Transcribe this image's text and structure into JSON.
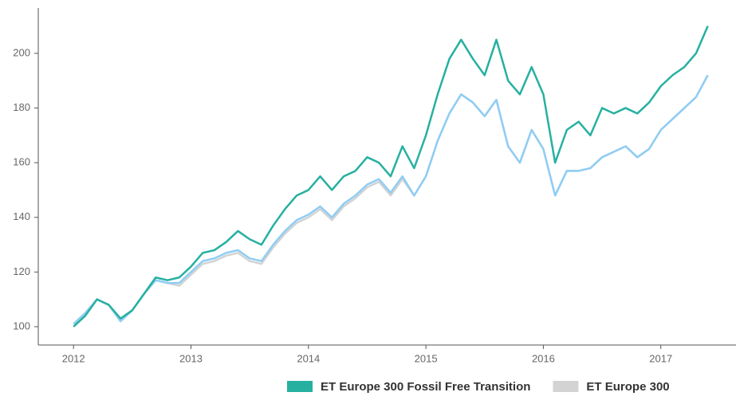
{
  "chart_data": {
    "type": "line",
    "x": [
      2012.0,
      2012.1,
      2012.2,
      2012.3,
      2012.4,
      2012.5,
      2012.6,
      2012.7,
      2012.8,
      2012.9,
      2013.0,
      2013.1,
      2013.2,
      2013.3,
      2013.4,
      2013.5,
      2013.6,
      2013.7,
      2013.8,
      2013.9,
      2014.0,
      2014.1,
      2014.2,
      2014.3,
      2014.4,
      2014.5,
      2014.6,
      2014.7,
      2014.8,
      2014.9,
      2015.0,
      2015.1,
      2015.2,
      2015.3,
      2015.4,
      2015.5,
      2015.6,
      2015.7,
      2015.8,
      2015.9,
      2016.0,
      2016.1,
      2016.2,
      2016.3,
      2016.4,
      2016.5,
      2016.6,
      2016.7,
      2016.8,
      2016.9,
      2017.0,
      2017.1,
      2017.2,
      2017.3,
      2017.4
    ],
    "series": [
      {
        "name": "ET Europe 300",
        "color": "#d3d3d3",
        "values": [
          101,
          105,
          110,
          108,
          102,
          106,
          112,
          117,
          116,
          115,
          119,
          123,
          124,
          126,
          127,
          124,
          123,
          129,
          134,
          138,
          140,
          143,
          139,
          144,
          147,
          151,
          153,
          148,
          154,
          148,
          155,
          168,
          178,
          185,
          182,
          177,
          183,
          166,
          160,
          172,
          165,
          148,
          157,
          157,
          158,
          162,
          164,
          166,
          162,
          165,
          172,
          176,
          180,
          184,
          192
        ]
      },
      {
        "color": "#8ecdf5",
        "values": [
          101,
          105,
          110,
          108,
          102,
          106,
          112,
          117,
          116,
          116,
          120,
          124,
          125,
          127,
          128,
          125,
          124,
          130,
          135,
          139,
          141,
          144,
          140,
          145,
          148,
          152,
          154,
          149,
          155,
          148,
          155,
          168,
          178,
          185,
          182,
          177,
          183,
          166,
          160,
          172,
          165,
          148,
          157,
          157,
          158,
          162,
          164,
          166,
          162,
          165,
          172,
          176,
          180,
          184,
          192
        ]
      },
      {
        "name": "ET Europe 300 Fossil Free Transition",
        "color": "#26b0a0",
        "values": [
          100,
          104,
          110,
          108,
          103,
          106,
          112,
          118,
          117,
          118,
          122,
          127,
          128,
          131,
          135,
          132,
          130,
          137,
          143,
          148,
          150,
          155,
          150,
          155,
          157,
          162,
          160,
          155,
          166,
          158,
          170,
          185,
          198,
          205,
          198,
          192,
          205,
          190,
          185,
          195,
          185,
          160,
          172,
          175,
          170,
          180,
          178,
          180,
          178,
          182,
          188,
          192,
          195,
          200,
          210
        ]
      }
    ],
    "xlim": [
      2011.7,
      2017.64
    ],
    "xticks": [
      2012,
      2013,
      2014,
      2015,
      2016,
      2017
    ],
    "ylim": [
      93.3,
      216.6
    ],
    "yticks": [
      100,
      120,
      140,
      160,
      180,
      200
    ]
  }
}
